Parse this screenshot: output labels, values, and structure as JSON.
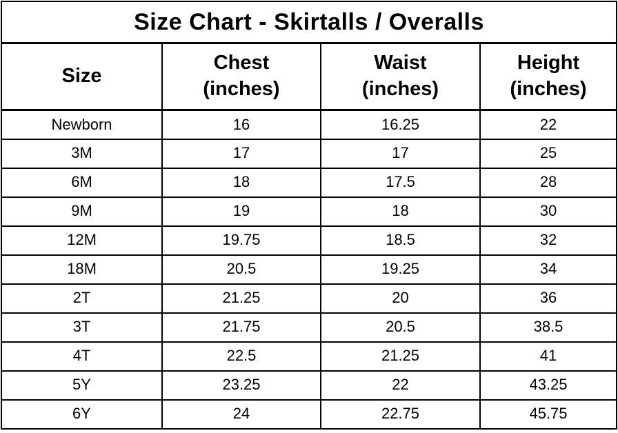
{
  "chart_data": {
    "type": "table",
    "title": "Size Chart - Skirtalls / Overalls",
    "columns": [
      "Size",
      "Chest\n(inches)",
      "Waist\n(inches)",
      "Height\n(inches)"
    ],
    "rows": [
      {
        "size": "Newborn",
        "chest": "16",
        "waist": "16.25",
        "height": "22"
      },
      {
        "size": "3M",
        "chest": "17",
        "waist": "17",
        "height": "25"
      },
      {
        "size": "6M",
        "chest": "18",
        "waist": "17.5",
        "height": "28"
      },
      {
        "size": "9M",
        "chest": "19",
        "waist": "18",
        "height": "30"
      },
      {
        "size": "12M",
        "chest": "19.75",
        "waist": "18.5",
        "height": "32"
      },
      {
        "size": "18M",
        "chest": "20.5",
        "waist": "19.25",
        "height": "34"
      },
      {
        "size": "2T",
        "chest": "21.25",
        "waist": "20",
        "height": "36"
      },
      {
        "size": "3T",
        "chest": "21.75",
        "waist": "20.5",
        "height": "38.5"
      },
      {
        "size": "4T",
        "chest": "22.5",
        "waist": "21.25",
        "height": "41"
      },
      {
        "size": "5Y",
        "chest": "23.25",
        "waist": "22",
        "height": "43.25"
      },
      {
        "size": "6Y",
        "chest": "24",
        "waist": "22.75",
        "height": "45.75"
      }
    ]
  },
  "style": {
    "background": "#ffffff",
    "border_color": "#000000",
    "text_color": "#000000"
  }
}
